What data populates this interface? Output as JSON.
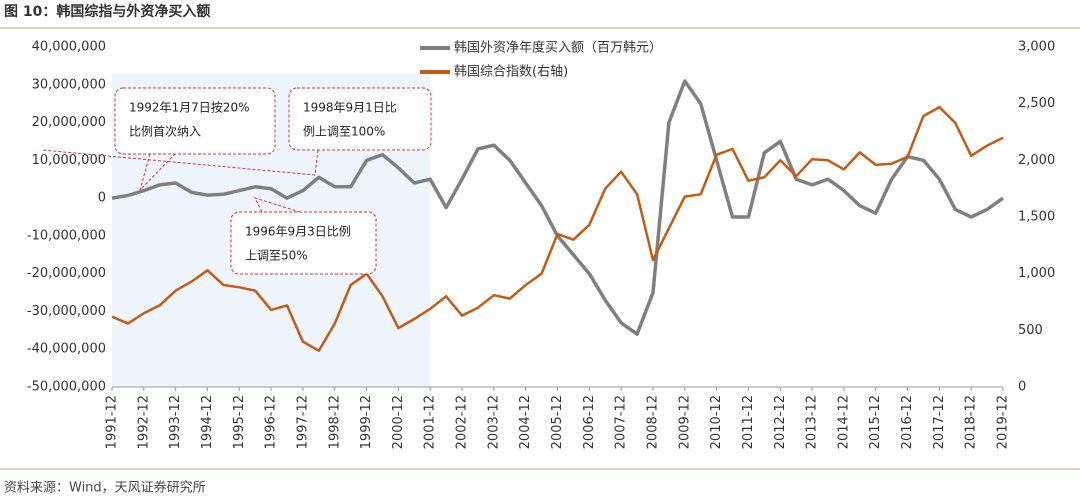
{
  "chart_data": {
    "type": "line",
    "title": "图 10：韩国综指与外资净买入额",
    "source": "资料来源：Wind，天风证券研究所",
    "categories": [
      "1991-12",
      null,
      "1992-12",
      null,
      "1993-12",
      null,
      "1994-12",
      null,
      "1995-12",
      null,
      "1996-12",
      null,
      "1997-12",
      null,
      "1998-12",
      null,
      "1999-12",
      null,
      "2000-12",
      null,
      "2001-12",
      null,
      "2002-12",
      null,
      "2003-12",
      null,
      "2004-12",
      null,
      "2005-12",
      null,
      "2006-12",
      null,
      "2007-12",
      null,
      "2008-12",
      null,
      "2009-12",
      null,
      "2010-12",
      null,
      "2011-12",
      null,
      "2012-12",
      null,
      "2013-12",
      null,
      "2014-12",
      null,
      "2015-12",
      null,
      "2016-12",
      null,
      "2017-12",
      null,
      "2018-12",
      null,
      "2019-12"
    ],
    "series": [
      {
        "name": "韩国外资净年度买入额（百万韩元）",
        "color": "#7f7f7f",
        "values": [
          0,
          700000,
          2000000,
          3500000,
          4000000,
          1500000,
          800000,
          1000000,
          2000000,
          3000000,
          2500000,
          0,
          2000000,
          5500000,
          3000000,
          3000000,
          10000000,
          11500000,
          8000000,
          4000000,
          5000000,
          -2500000,
          5000000,
          13000000,
          14000000,
          10000000,
          4000000,
          -2000000,
          -10000000,
          -15000000,
          -20000000,
          -27000000,
          -33000000,
          -36000000,
          -25000000,
          20000000,
          31000000,
          25000000,
          10000000,
          -5000000,
          -5000000,
          12000000,
          15000000,
          5000000,
          3500000,
          5000000,
          2000000,
          -2000000,
          -4000000,
          5000000,
          11000000,
          10000000,
          5000000,
          -3000000,
          -5000000,
          -3000000,
          0
        ]
      },
      {
        "name": "韩国综合指数(右轴)",
        "color": "#c55a11",
        "axis": "y2",
        "values": [
          620,
          560,
          650,
          720,
          850,
          930,
          1030,
          900,
          880,
          850,
          680,
          720,
          400,
          320,
          560,
          900,
          1000,
          800,
          520,
          600,
          690,
          800,
          630,
          700,
          810,
          780,
          900,
          1000,
          1350,
          1300,
          1430,
          1750,
          1900,
          1700,
          1120,
          1400,
          1680,
          1700,
          2050,
          2100,
          1820,
          1850,
          2000,
          1860,
          2010,
          2000,
          1920,
          2070,
          1960,
          1970,
          2030,
          2390,
          2470,
          2330,
          2040,
          2130,
          2200
        ]
      }
    ],
    "ylim": [
      -50000000,
      40000000
    ],
    "yticks": [
      {
        "value": -50000000,
        "label": "-50,000,000"
      },
      {
        "value": -40000000,
        "label": "-40,000,000"
      },
      {
        "value": -30000000,
        "label": "-30,000,000"
      },
      {
        "value": -20000000,
        "label": "-20,000,000"
      },
      {
        "value": -10000000,
        "label": "-10,000,000"
      },
      0,
      {
        "value": 10000000,
        "label": "10,000,000"
      },
      {
        "value": 20000000,
        "label": "20,000,000"
      },
      {
        "value": 30000000,
        "label": "30,000,000"
      },
      {
        "value": 40000000,
        "label": "40,000,000"
      }
    ],
    "y2lim": [
      0,
      3000
    ],
    "y2ticks": [
      0,
      500,
      {
        "value": 1000,
        "label": "1,000"
      },
      {
        "value": 1500,
        "label": "1,500"
      },
      {
        "value": 2000,
        "label": "2,000"
      },
      {
        "value": 2500,
        "label": "2,500"
      },
      {
        "value": 3000,
        "label": "3,000"
      }
    ],
    "highlight_range": [
      "1991-12",
      "2001-12"
    ],
    "legend": "top",
    "annotations": [
      {
        "lines": [
          "1992年1月7日按20%",
          "比例首次纳入"
        ]
      },
      {
        "lines": [
          "1998年9月1日比",
          "例上调至100%"
        ]
      },
      {
        "lines": [
          "1996年9月3日比例",
          "上调至50%"
        ]
      }
    ]
  }
}
